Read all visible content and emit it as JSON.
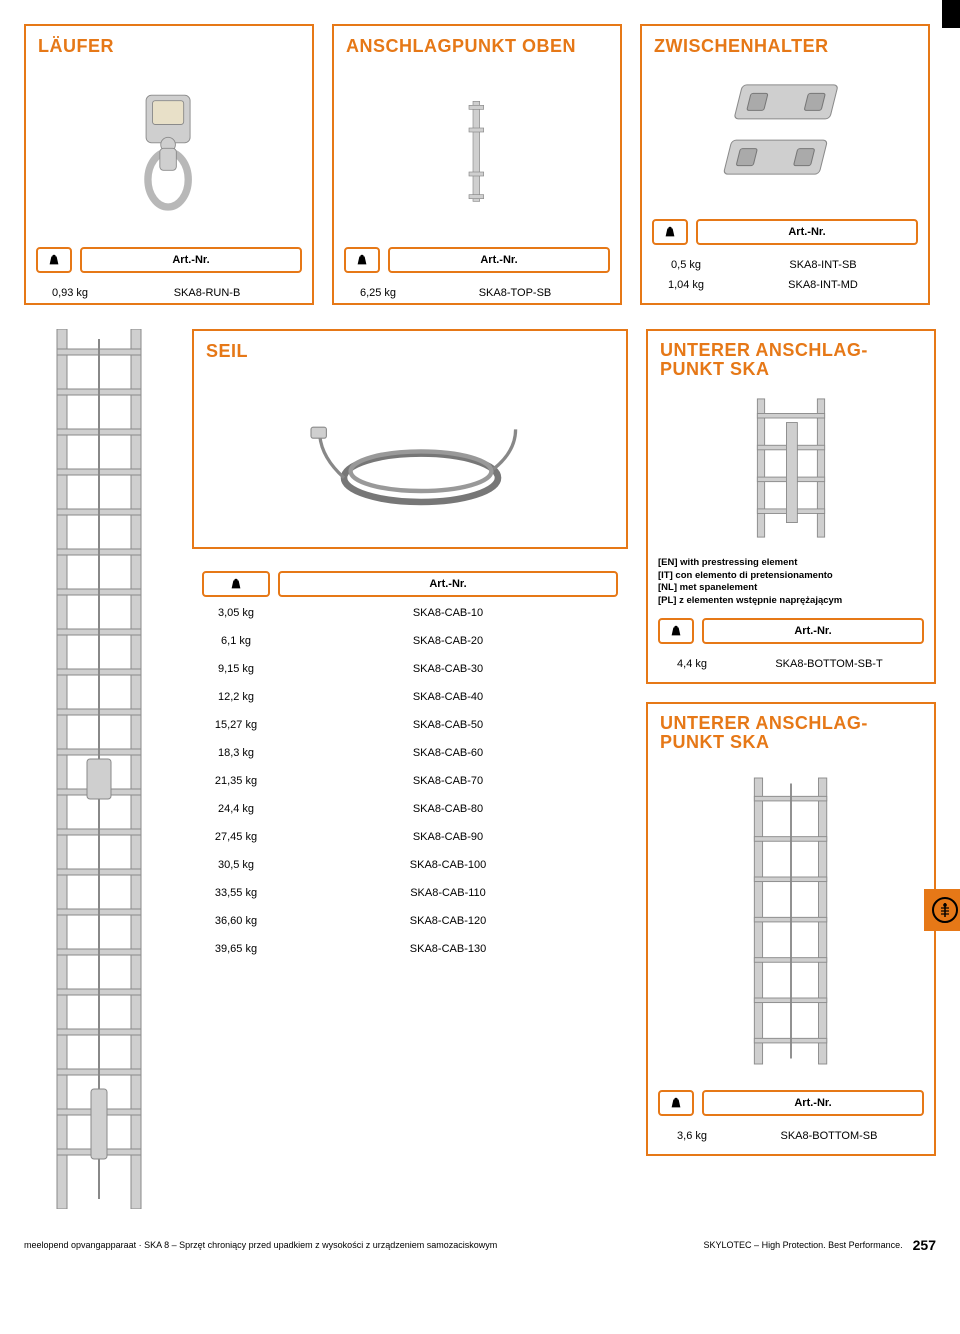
{
  "accent_color": "#e67817",
  "background": "#ffffff",
  "header_art": "Art.-Nr.",
  "cards": {
    "laufer": {
      "title": "LÄUFER",
      "rows": [
        {
          "weight": "0,93 kg",
          "art": "SKA8-RUN-B"
        }
      ]
    },
    "anschlag_oben": {
      "title": "ANSCHLAGPUNKT OBEN",
      "rows": [
        {
          "weight": "6,25 kg",
          "art": "SKA8-TOP-SB"
        }
      ]
    },
    "zwischenhalter": {
      "title": "ZWISCHENHALTER",
      "rows": [
        {
          "weight": "0,5 kg",
          "art": "SKA8-INT-SB"
        },
        {
          "weight": "1,04 kg",
          "art": "SKA8-INT-MD"
        }
      ]
    },
    "seil": {
      "title": "SEIL",
      "rows": [
        {
          "weight": "3,05 kg",
          "art": "SKA8-CAB-10"
        },
        {
          "weight": "6,1 kg",
          "art": "SKA8-CAB-20"
        },
        {
          "weight": "9,15 kg",
          "art": "SKA8-CAB-30"
        },
        {
          "weight": "12,2 kg",
          "art": "SKA8-CAB-40"
        },
        {
          "weight": "15,27 kg",
          "art": "SKA8-CAB-50"
        },
        {
          "weight": "18,3 kg",
          "art": "SKA8-CAB-60"
        },
        {
          "weight": "21,35 kg",
          "art": "SKA8-CAB-70"
        },
        {
          "weight": "24,4 kg",
          "art": "SKA8-CAB-80"
        },
        {
          "weight": "27,45 kg",
          "art": "SKA8-CAB-90"
        },
        {
          "weight": "30,5 kg",
          "art": "SKA8-CAB-100"
        },
        {
          "weight": "33,55 kg",
          "art": "SKA8-CAB-110"
        },
        {
          "weight": "36,60 kg",
          "art": "SKA8-CAB-120"
        },
        {
          "weight": "39,65 kg",
          "art": "SKA8-CAB-130"
        }
      ]
    },
    "unterer_t": {
      "title": "UNTERER ANSCHLAG-PUNKT SKA",
      "desc": {
        "en": "[EN] with prestressing element",
        "it": "[IT] con elemento di pretensionamento",
        "nl": "[NL] met spanelement",
        "pl": "[PL] z elementen wstępnie naprężającym"
      },
      "rows": [
        {
          "weight": "4,4 kg",
          "art": "SKA8-BOTTOM-SB-T"
        }
      ]
    },
    "unterer": {
      "title": "UNTERER ANSCHLAG-PUNKT SKA",
      "rows": [
        {
          "weight": "3,6 kg",
          "art": "SKA8-BOTTOM-SB"
        }
      ]
    }
  },
  "footer": {
    "left": "meelopend opvangapparaat · SKA 8 – Sprzęt chroniący przed upadkiem z wysokości z urządzeniem samozaciskowym",
    "right": "SKYLOTEC – High Protection. Best Performance.",
    "page": "257"
  }
}
